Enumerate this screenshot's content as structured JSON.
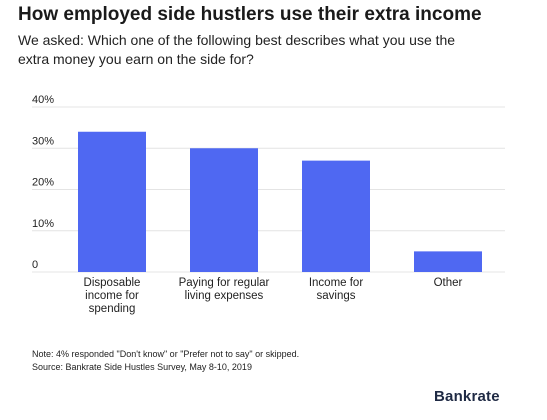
{
  "title": "How employed side hustlers use their extra income",
  "subtitle": "We asked: Which one of the following best describes what you use the extra money you earn on the side for?",
  "note": {
    "line1": "Note: 4% responded \"Don't know\" or \"Prefer not to say\" or skipped.",
    "line2": "Source: Bankrate Side Hustles Survey, May 8-10, 2019"
  },
  "brand": "Bankrate",
  "colors": {
    "bar": "#4f68f2",
    "grid": "#e4e4e4",
    "text": "#222222"
  },
  "chart_data": {
    "type": "bar",
    "categories": [
      [
        "Disposable",
        "income for",
        "spending"
      ],
      [
        "Paying for regular",
        "living expenses"
      ],
      [
        "Income for",
        "savings"
      ],
      [
        "Other"
      ]
    ],
    "values": [
      34,
      30,
      27,
      5
    ],
    "ylim": [
      0,
      40
    ],
    "yticks": [
      0,
      10,
      20,
      30,
      40
    ],
    "ytick_labels": [
      "0",
      "10%",
      "20%",
      "30%",
      "40%"
    ],
    "grid": true,
    "legend": "none"
  }
}
